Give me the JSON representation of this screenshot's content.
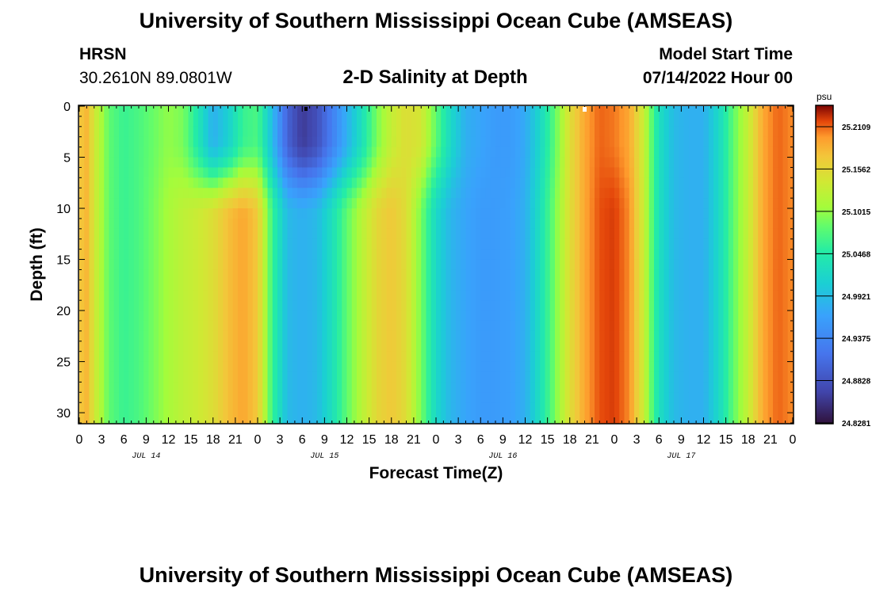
{
  "header": {
    "title": "University of Southern Mississippi Ocean Cube (AMSEAS)",
    "station_name": "HRSN",
    "station_coords": "30.2610N  89.0801W",
    "subtitle": "2-D Salinity at Depth",
    "model_start_label": "Model Start Time",
    "model_start_value": "07/14/2022 Hour 00"
  },
  "footer": {
    "title": "University of Southern Mississippi Ocean Cube (AMSEAS)"
  },
  "chart_data": {
    "type": "heatmap",
    "title": "2-D Salinity at Depth",
    "xlabel": "Forecast Time(Z)",
    "ylabel": "Depth (ft)",
    "x_tick_labels": [
      "0",
      "3",
      "6",
      "9",
      "12",
      "15",
      "18",
      "21",
      "0",
      "3",
      "6",
      "9",
      "12",
      "15",
      "18",
      "21",
      "0",
      "3",
      "6",
      "9",
      "12",
      "15",
      "18",
      "21",
      "0",
      "3",
      "6",
      "9",
      "12",
      "15",
      "18",
      "21",
      "0"
    ],
    "x_day_labels": [
      "JUL 14",
      "JUL 15",
      "JUL 16",
      "JUL 17"
    ],
    "xlim_hours": [
      0,
      96
    ],
    "y_tick_labels": [
      "0",
      "5",
      "10",
      "15",
      "20",
      "25",
      "30"
    ],
    "ylim": [
      0,
      31
    ],
    "y_inverted": true,
    "colorbar": {
      "unit": "psu",
      "labels": [
        "25.2109",
        "25.1562",
        "25.1015",
        "25.0468",
        "24.9921",
        "24.9375",
        "24.8828",
        "24.8281"
      ],
      "range": [
        24.8281,
        25.2375
      ]
    },
    "grid": false,
    "surface_profile": {
      "hours": [
        0,
        1,
        2,
        4,
        6,
        8,
        10,
        12,
        14,
        16,
        18,
        20,
        22,
        24,
        26,
        28,
        30,
        32,
        34,
        36,
        38,
        40,
        42,
        44,
        46,
        48,
        50,
        52,
        54,
        56,
        58,
        60,
        62,
        64,
        66,
        68,
        70,
        72,
        74,
        76,
        78,
        80,
        82,
        84,
        86,
        88,
        90,
        92,
        94,
        96
      ],
      "salinity": [
        25.17,
        25.18,
        25.14,
        25.08,
        25.06,
        25.07,
        25.085,
        25.1,
        25.09,
        25.04,
        24.98,
        25.01,
        25.06,
        25.07,
        24.99,
        24.9,
        24.86,
        24.88,
        24.93,
        24.98,
        25.03,
        25.09,
        25.13,
        25.15,
        25.14,
        25.08,
        25.02,
        24.98,
        24.97,
        24.96,
        24.96,
        24.975,
        25.02,
        25.08,
        25.15,
        25.19,
        25.21,
        25.205,
        25.19,
        25.13,
        25.03,
        24.99,
        24.98,
        24.98,
        25.02,
        25.08,
        25.13,
        25.19,
        25.21,
        25.2
      ]
    },
    "deep_profile": {
      "hours": [
        0,
        1,
        2,
        4,
        6,
        8,
        10,
        12,
        14,
        16,
        18,
        20,
        22,
        24,
        26,
        28,
        30,
        32,
        34,
        36,
        38,
        40,
        42,
        44,
        46,
        48,
        50,
        52,
        54,
        56,
        58,
        60,
        62,
        64,
        66,
        68,
        70,
        72,
        74,
        76,
        78,
        80,
        82,
        84,
        86,
        88,
        90,
        92,
        94,
        96
      ],
      "salinity": [
        25.17,
        25.18,
        25.14,
        25.08,
        25.06,
        25.07,
        25.09,
        25.11,
        25.125,
        25.135,
        25.15,
        25.175,
        25.19,
        25.17,
        25.06,
        24.99,
        24.98,
        24.99,
        25.03,
        25.08,
        25.12,
        25.155,
        25.17,
        25.15,
        25.09,
        25.02,
        24.985,
        24.97,
        24.96,
        24.96,
        24.965,
        24.98,
        25.03,
        25.09,
        25.15,
        25.19,
        25.215,
        25.22,
        25.2,
        25.13,
        25.03,
        24.99,
        24.98,
        24.98,
        25.02,
        25.08,
        25.13,
        25.19,
        25.21,
        25.2
      ]
    },
    "transition_depth_ft": [
      3,
      11
    ]
  }
}
